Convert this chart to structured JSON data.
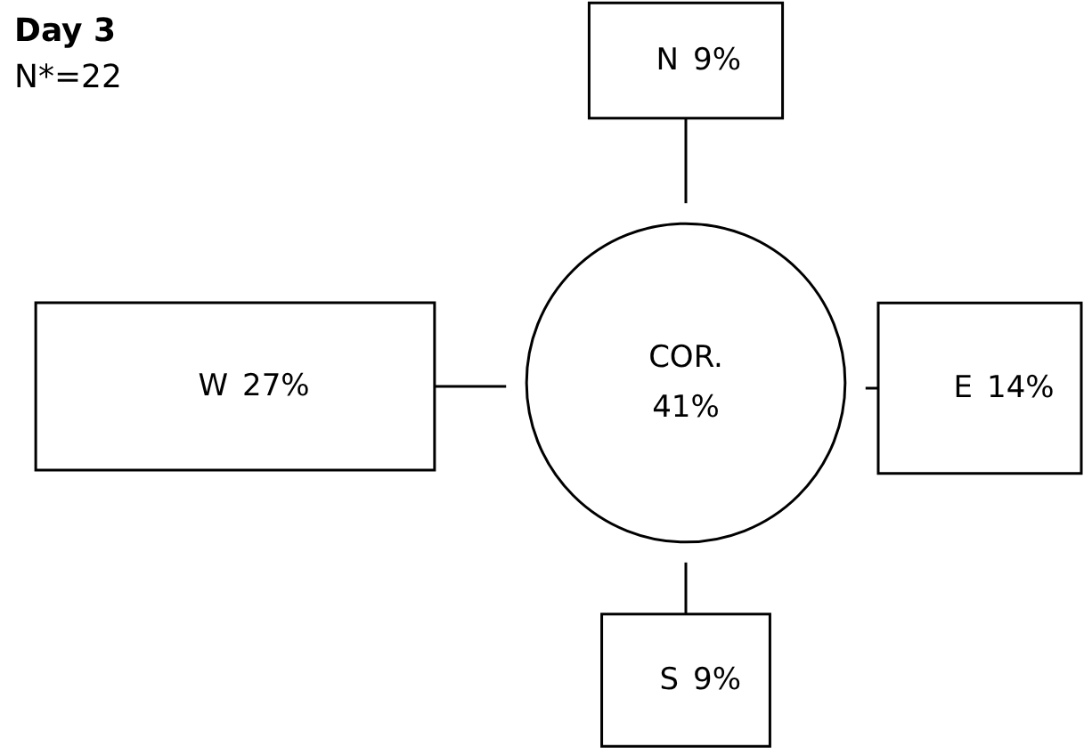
{
  "chart_data": {
    "type": "other",
    "title": "Day 3",
    "subtitle": "N*=22",
    "categories": [
      "N",
      "E",
      "S",
      "W",
      "COR."
    ],
    "values": [
      9,
      14,
      9,
      27,
      41
    ],
    "value_labels": [
      "9%",
      "14%",
      "9%",
      "27%",
      "41%"
    ],
    "color": "#000000"
  }
}
